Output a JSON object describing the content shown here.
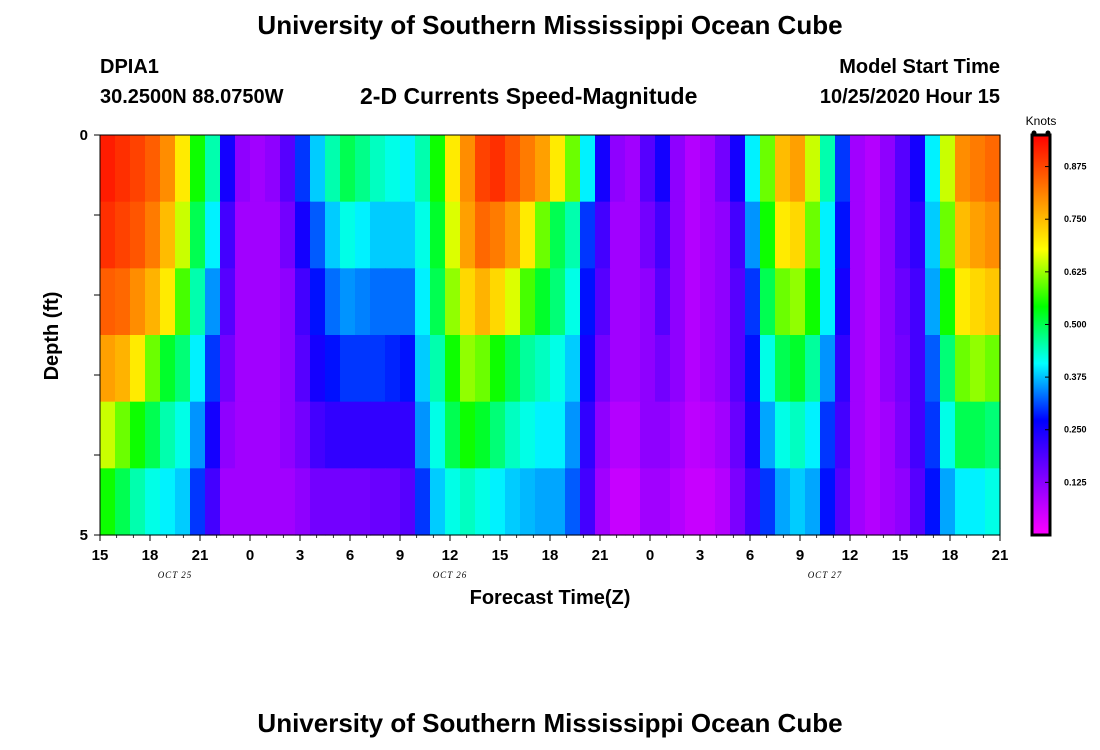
{
  "page": {
    "title": "University of Southern Mississippi Ocean Cube",
    "footer_title": "University of Southern Mississippi Ocean Cube",
    "station_id": "DPIA1",
    "station_coords": "30.2500N 88.0750W",
    "subtitle": "2-D Currents Speed-Magnitude",
    "model_start_label": "Model Start Time",
    "model_start_value": "10/25/2020 Hour 15"
  },
  "chart_data": {
    "type": "heatmap",
    "title": "2-D Currents Speed-Magnitude",
    "xlabel": "Forecast Time(Z)",
    "ylabel": "Depth (ft)",
    "x_tick_labels": [
      "15",
      "18",
      "21",
      "0",
      "3",
      "6",
      "9",
      "12",
      "15",
      "18",
      "21",
      "0",
      "3",
      "6",
      "9",
      "12",
      "15",
      "18",
      "21"
    ],
    "date_labels": [
      {
        "label": "OCT 25",
        "hour_index": 4.5
      },
      {
        "label": "OCT 26",
        "hour_index": 21
      },
      {
        "label": "OCT 27",
        "hour_index": 43.5
      }
    ],
    "y_tick_labels": [
      "0",
      "5"
    ],
    "ylim": [
      0,
      5
    ],
    "x_hours": 54,
    "depth_layers": 5,
    "colorbar": {
      "title": "Knots",
      "tick_labels": [
        "0.875",
        "0.750",
        "0.625",
        "0.500",
        "0.375",
        "0.250",
        "0.125"
      ],
      "tick_values": [
        0.875,
        0.75,
        0.625,
        0.5,
        0.375,
        0.25,
        0.125
      ],
      "range": [
        0.0,
        0.95
      ],
      "colors": [
        "#ff00ff",
        "#8000ff",
        "#0000ff",
        "#00ffff",
        "#00ff00",
        "#ffff00",
        "#ff8000",
        "#ff0000"
      ]
    },
    "grid": false,
    "speed_knots": [
      [
        0.92,
        0.9,
        0.88,
        0.85,
        0.8,
        0.7,
        0.55,
        0.45,
        0.25,
        0.12,
        0.1,
        0.12,
        0.18,
        0.3,
        0.38,
        0.45,
        0.5,
        0.47,
        0.44,
        0.42,
        0.4,
        0.45,
        0.55,
        0.7,
        0.8,
        0.88,
        0.9,
        0.86,
        0.82,
        0.78,
        0.7,
        0.6,
        0.4,
        0.25,
        0.12,
        0.1,
        0.18,
        0.25,
        0.12,
        0.08,
        0.1,
        0.15,
        0.25,
        0.4,
        0.6,
        0.75,
        0.78,
        0.65,
        0.45,
        0.3,
        0.1,
        0.08,
        0.12,
        0.18,
        0.25,
        0.4,
        0.65,
        0.8,
        0.82,
        0.84
      ],
      [
        0.9,
        0.88,
        0.86,
        0.82,
        0.75,
        0.65,
        0.5,
        0.4,
        0.2,
        0.1,
        0.1,
        0.1,
        0.15,
        0.25,
        0.32,
        0.38,
        0.42,
        0.4,
        0.38,
        0.38,
        0.38,
        0.42,
        0.52,
        0.66,
        0.78,
        0.84,
        0.82,
        0.78,
        0.7,
        0.6,
        0.5,
        0.45,
        0.3,
        0.2,
        0.1,
        0.1,
        0.15,
        0.2,
        0.12,
        0.08,
        0.1,
        0.12,
        0.2,
        0.35,
        0.55,
        0.7,
        0.72,
        0.6,
        0.4,
        0.28,
        0.1,
        0.08,
        0.12,
        0.18,
        0.22,
        0.38,
        0.6,
        0.75,
        0.78,
        0.8
      ],
      [
        0.85,
        0.84,
        0.8,
        0.76,
        0.7,
        0.58,
        0.45,
        0.35,
        0.18,
        0.1,
        0.1,
        0.1,
        0.12,
        0.2,
        0.28,
        0.33,
        0.35,
        0.34,
        0.33,
        0.33,
        0.33,
        0.4,
        0.5,
        0.62,
        0.72,
        0.76,
        0.72,
        0.66,
        0.58,
        0.52,
        0.48,
        0.42,
        0.28,
        0.18,
        0.1,
        0.1,
        0.12,
        0.18,
        0.12,
        0.08,
        0.1,
        0.12,
        0.18,
        0.3,
        0.5,
        0.6,
        0.62,
        0.55,
        0.4,
        0.25,
        0.1,
        0.08,
        0.12,
        0.16,
        0.2,
        0.36,
        0.55,
        0.7,
        0.72,
        0.74
      ],
      [
        0.78,
        0.76,
        0.7,
        0.6,
        0.52,
        0.48,
        0.4,
        0.3,
        0.15,
        0.1,
        0.1,
        0.1,
        0.12,
        0.18,
        0.25,
        0.28,
        0.3,
        0.3,
        0.3,
        0.29,
        0.28,
        0.38,
        0.45,
        0.55,
        0.62,
        0.6,
        0.55,
        0.5,
        0.46,
        0.44,
        0.42,
        0.38,
        0.25,
        0.15,
        0.1,
        0.1,
        0.12,
        0.15,
        0.12,
        0.08,
        0.1,
        0.12,
        0.18,
        0.28,
        0.42,
        0.5,
        0.52,
        0.46,
        0.35,
        0.22,
        0.1,
        0.08,
        0.12,
        0.15,
        0.2,
        0.32,
        0.48,
        0.6,
        0.62,
        0.6
      ],
      [
        0.65,
        0.6,
        0.55,
        0.5,
        0.45,
        0.42,
        0.35,
        0.25,
        0.12,
        0.1,
        0.1,
        0.1,
        0.12,
        0.15,
        0.2,
        0.22,
        0.22,
        0.22,
        0.22,
        0.22,
        0.22,
        0.35,
        0.42,
        0.5,
        0.55,
        0.52,
        0.48,
        0.44,
        0.42,
        0.4,
        0.4,
        0.35,
        0.22,
        0.12,
        0.08,
        0.08,
        0.12,
        0.12,
        0.1,
        0.07,
        0.08,
        0.1,
        0.16,
        0.24,
        0.36,
        0.42,
        0.44,
        0.4,
        0.3,
        0.2,
        0.1,
        0.08,
        0.1,
        0.14,
        0.2,
        0.3,
        0.42,
        0.5,
        0.5,
        0.48
      ],
      [
        0.55,
        0.5,
        0.45,
        0.42,
        0.4,
        0.38,
        0.3,
        0.2,
        0.1,
        0.1,
        0.1,
        0.1,
        0.1,
        0.12,
        0.15,
        0.15,
        0.15,
        0.15,
        0.16,
        0.16,
        0.18,
        0.3,
        0.38,
        0.42,
        0.44,
        0.42,
        0.4,
        0.38,
        0.37,
        0.36,
        0.36,
        0.32,
        0.2,
        0.1,
        0.06,
        0.06,
        0.1,
        0.1,
        0.08,
        0.06,
        0.06,
        0.08,
        0.14,
        0.2,
        0.3,
        0.36,
        0.38,
        0.36,
        0.28,
        0.18,
        0.1,
        0.08,
        0.1,
        0.12,
        0.18,
        0.28,
        0.36,
        0.4,
        0.4,
        0.42
      ]
    ]
  }
}
